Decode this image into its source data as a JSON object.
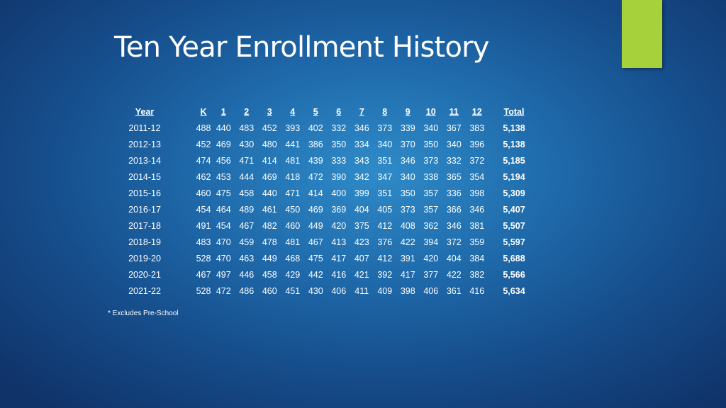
{
  "slide": {
    "title": "Ten Year Enrollment History",
    "accent_color": "#a6d13a",
    "background_color": "#1f6aab",
    "footnote": "* Excludes Pre-School"
  },
  "table": {
    "headers": [
      "Year",
      "K",
      "1",
      "2",
      "3",
      "4",
      "5",
      "6",
      "7",
      "8",
      "9",
      "10",
      "11",
      "12",
      "Total"
    ],
    "rows": [
      {
        "year": "2011-12",
        "values": [
          "488",
          "440",
          "483",
          "452",
          "393",
          "402",
          "332",
          "346",
          "373",
          "339",
          "340",
          "367",
          "383"
        ],
        "total": "5,138"
      },
      {
        "year": "2012-13",
        "values": [
          "452",
          "469",
          "430",
          "480",
          "441",
          "386",
          "350",
          "334",
          "340",
          "370",
          "350",
          "340",
          "396"
        ],
        "total": "5,138"
      },
      {
        "year": "2013-14",
        "values": [
          "474",
          "456",
          "471",
          "414",
          "481",
          "439",
          "333",
          "343",
          "351",
          "346",
          "373",
          "332",
          "372"
        ],
        "total": "5,185"
      },
      {
        "year": "2014-15",
        "values": [
          "462",
          "453",
          "444",
          "469",
          "418",
          "472",
          "390",
          "342",
          "347",
          "340",
          "338",
          "365",
          "354"
        ],
        "total": "5,194"
      },
      {
        "year": "2015-16",
        "values": [
          "460",
          "475",
          "458",
          "440",
          "471",
          "414",
          "400",
          "399",
          "351",
          "350",
          "357",
          "336",
          "398"
        ],
        "total": "5,309"
      },
      {
        "year": "2016-17",
        "values": [
          "454",
          "464",
          "489",
          "461",
          "450",
          "469",
          "369",
          "404",
          "405",
          "373",
          "357",
          "366",
          "346"
        ],
        "total": "5,407"
      },
      {
        "year": "2017-18",
        "values": [
          "491",
          "454",
          "467",
          "482",
          "460",
          "449",
          "420",
          "375",
          "412",
          "408",
          "362",
          "346",
          "381"
        ],
        "total": "5,507"
      },
      {
        "year": "2018-19",
        "values": [
          "483",
          "470",
          "459",
          "478",
          "481",
          "467",
          "413",
          "423",
          "376",
          "422",
          "394",
          "372",
          "359"
        ],
        "total": "5,597"
      },
      {
        "year": "2019-20",
        "values": [
          "528",
          "470",
          "463",
          "449",
          "468",
          "475",
          "417",
          "407",
          "412",
          "391",
          "420",
          "404",
          "384"
        ],
        "total": "5,688"
      },
      {
        "year": "2020-21",
        "values": [
          "467",
          "497",
          "446",
          "458",
          "429",
          "442",
          "416",
          "421",
          "392",
          "417",
          "377",
          "422",
          "382"
        ],
        "total": "5,566"
      },
      {
        "year": "2021-22",
        "values": [
          "528",
          "472",
          "486",
          "460",
          "451",
          "430",
          "406",
          "411",
          "409",
          "398",
          "406",
          "361",
          "416"
        ],
        "total": "5,634"
      }
    ]
  }
}
